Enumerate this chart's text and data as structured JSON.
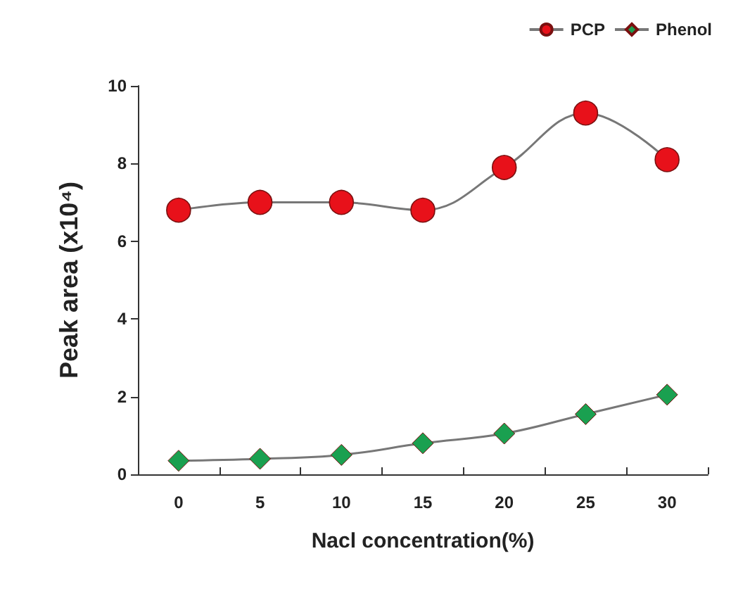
{
  "chart_data": {
    "type": "line",
    "xlabel": "Nacl concentration(%)",
    "ylabel": "Peak area (x10⁴)",
    "categories": [
      "0",
      "5",
      "10",
      "15",
      "20",
      "25",
      "30"
    ],
    "series": [
      {
        "name": "PCP",
        "color": "#e8111a",
        "marker": "circle",
        "values": [
          6.8,
          7.0,
          7.0,
          6.8,
          7.9,
          9.3,
          8.1
        ]
      },
      {
        "name": "Phenol",
        "color": "#1aa050",
        "marker": "diamond",
        "values": [
          0.35,
          0.4,
          0.5,
          0.8,
          1.05,
          1.55,
          2.05
        ]
      }
    ],
    "ylim": [
      0,
      10
    ],
    "yticks": [
      0,
      2,
      4,
      6,
      8,
      10
    ],
    "grid": false,
    "legend": "top right",
    "line_style": "solid"
  }
}
